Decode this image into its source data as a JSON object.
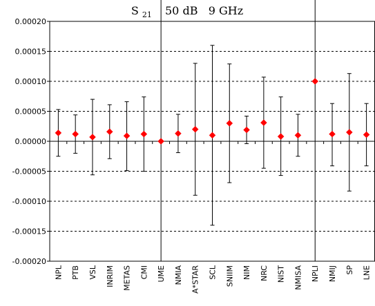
{
  "chart_data": {
    "type": "scatter",
    "title": {
      "base": "S",
      "subscript": "21",
      "rest": "50 dB   9 GHz"
    },
    "xlabel": "",
    "ylabel": "",
    "ylim": [
      -0.0002,
      0.0002
    ],
    "ytick_labels": [
      "0.00020",
      "0.00015",
      "0.00010",
      "0.00005",
      "0.00000",
      "-0.00005",
      "-0.00010",
      "-0.00015",
      "-0.00020"
    ],
    "ytick_values": [
      0.0002,
      0.00015,
      0.0001,
      5e-05,
      0,
      -5e-05,
      -0.0001,
      -0.00015,
      -0.0002
    ],
    "grid": {
      "horizontal": "dashed",
      "vertical": "none"
    },
    "reference_lines_at": [
      "UME",
      "NPLI"
    ],
    "marker": {
      "shape": "diamond",
      "color": "#ff0000"
    },
    "errorbar_color": "#000000",
    "categories": [
      "NPL",
      "PTB",
      "VSL",
      "INRIM",
      "METAS",
      "CMI",
      "UME",
      "NMIA",
      "A*STAR",
      "SCL",
      "SNIIM",
      "NIM",
      "NRC",
      "NIST",
      "NMISA",
      "NPLI",
      "NMIJ",
      "SP",
      "LNE"
    ],
    "values": [
      1.4e-05,
      1.2e-05,
      7e-06,
      1.6e-05,
      9e-06,
      1.2e-05,
      0.0,
      1.3e-05,
      2e-05,
      1e-05,
      3e-05,
      1.9e-05,
      3.1e-05,
      8e-06,
      1e-05,
      0.0001,
      1.2e-05,
      1.5e-05,
      1.1e-05
    ],
    "error_upper": [
      5.3e-05,
      4.4e-05,
      7e-05,
      6.1e-05,
      6.6e-05,
      7.4e-05,
      0.0,
      4.5e-05,
      0.00013,
      0.00016,
      0.000129,
      4.2e-05,
      0.000107,
      7.4e-05,
      4.5e-05,
      0.0001,
      6.3e-05,
      0.000113,
      6.3e-05
    ],
    "error_lower": [
      -2.5e-05,
      -2e-05,
      -5.6e-05,
      -2.9e-05,
      -4.9e-05,
      -5e-05,
      0.0,
      -1.9e-05,
      -9e-05,
      -0.00014,
      -6.9e-05,
      -4e-06,
      -4.5e-05,
      -5.7e-05,
      -2.5e-05,
      0.0001,
      -4.1e-05,
      -8.3e-05,
      -4.1e-05
    ]
  }
}
